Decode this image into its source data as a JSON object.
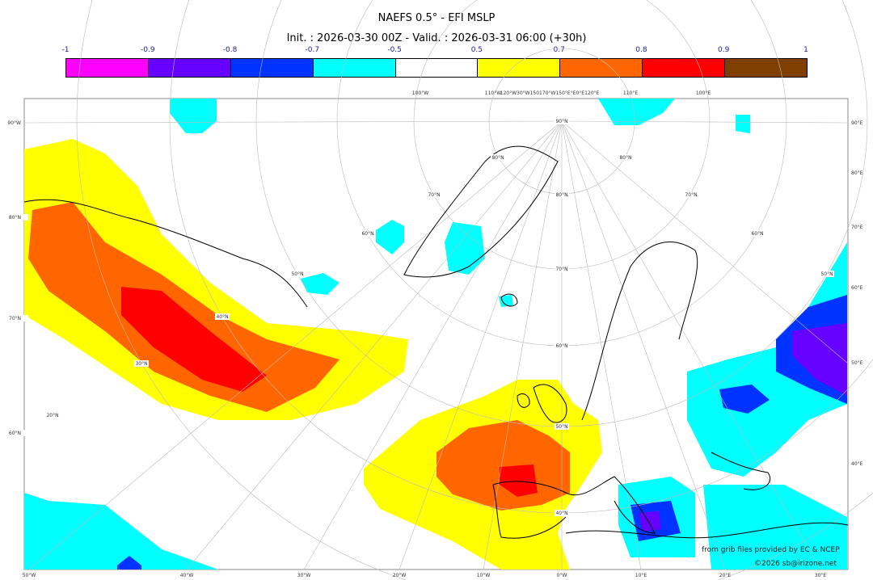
{
  "title": "NAEFS 0.5° - EFI MSLP",
  "subtitle": "Init. : 2026-03-30 00Z - Valid. : 2026-03-31 06:00 (+30h)",
  "colorbar": {
    "ticks": [
      "-1",
      "-0.9",
      "-0.8",
      "-0.7",
      "-0.5",
      "0.5",
      "0.7",
      "0.8",
      "0.9",
      "1"
    ],
    "colors": [
      "#ff00ff",
      "#6600ff",
      "#0033ff",
      "#00ffff",
      "#ffffff",
      "#ffff00",
      "#ff6600",
      "#ff0000",
      "#7f3f00"
    ]
  },
  "axes": {
    "top": [
      "100°W",
      "110°W",
      "120°W30°W150170°W150°E°E0°E120°E",
      "110°E",
      "100°E"
    ],
    "left": [
      "90°W",
      "80°N",
      "70°N",
      "60°N"
    ],
    "right": [
      "90°E",
      "80°E",
      "70°E",
      "60°E",
      "50°E",
      "40°E"
    ],
    "bottom": [
      "50°W",
      "40°W",
      "30°W",
      "20°W",
      "10°W",
      "0°W",
      "10°E",
      "20°E",
      "30°E"
    ]
  },
  "grid_labels": [
    "90°N",
    "80°N",
    "80°N",
    "80°N",
    "70°N",
    "70°N",
    "70°N",
    "60°N",
    "60°N",
    "60°N",
    "50°N",
    "50°N",
    "50°N",
    "40°N",
    "40°N",
    "30°N",
    "20°N"
  ],
  "credits": {
    "source": "from grib files provided by EC & NCEP",
    "copyright": "©2026 sb@irizone.net"
  }
}
